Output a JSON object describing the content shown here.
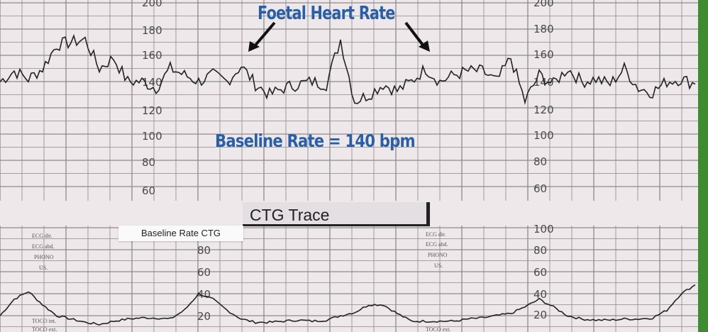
{
  "annotations": {
    "title": "Foetal Heart Rate",
    "baseline": "Baseline Rate = 140 bpm",
    "ctg_trace_label": "CTG Trace",
    "baseline_rate_ctg_label": "Baseline Rate CTG"
  },
  "paper_labels": {
    "sensor": [
      "ECG dir.",
      "ECG abd.",
      "PHONO",
      "US."
    ],
    "toco": [
      "TOCO int.",
      "TOCO ext."
    ]
  },
  "colors": {
    "annotation": "#2a5fa8",
    "trace": "#222222",
    "grid": "#8a8a8a",
    "paper": "#eee8ea",
    "accent_bar": "#3f8b2f"
  },
  "chart_data": [
    {
      "type": "line",
      "title": "Foetal Heart Rate",
      "ylabel": "",
      "ylim": [
        60,
        200
      ],
      "yticks": [
        "200",
        "180",
        "160",
        "140",
        "120",
        "100",
        "80",
        "60"
      ],
      "grid": true,
      "baseline": 140,
      "values": [
        140,
        148,
        142,
        150,
        168,
        170,
        172,
        150,
        158,
        140,
        140,
        135,
        150,
        145,
        140,
        145,
        140,
        152,
        138,
        130,
        135,
        138,
        140,
        138,
        172,
        125,
        130,
        138,
        133,
        140,
        150,
        140,
        145,
        148,
        148,
        140,
        158,
        125,
        145,
        138,
        150,
        140,
        142,
        138,
        150,
        135,
        132,
        140,
        142,
        138
      ]
    },
    {
      "type": "line",
      "title": "",
      "ylabel": "",
      "ylim": [
        0,
        100
      ],
      "yticks_left": [
        "80",
        "60",
        "40",
        "20"
      ],
      "yticks_right": [
        "100",
        "80",
        "60",
        "40",
        "20"
      ],
      "grid": true,
      "values": [
        20,
        35,
        42,
        30,
        20,
        17,
        14,
        12,
        15,
        17,
        18,
        18,
        17,
        25,
        40,
        35,
        25,
        17,
        14,
        14,
        15,
        16,
        15,
        16,
        20,
        23,
        30,
        30,
        22,
        15,
        15,
        15,
        15,
        17,
        18,
        20,
        22,
        28,
        35,
        28,
        20,
        17,
        16,
        16,
        17,
        17,
        18,
        25,
        40,
        48
      ]
    }
  ]
}
